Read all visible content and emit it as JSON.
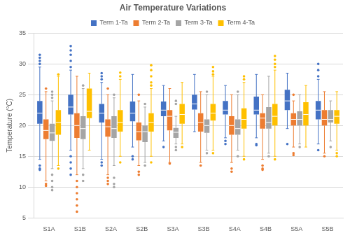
{
  "chart_data": {
    "type": "boxplot",
    "title": "Air Temperature Variations",
    "y_label": "Temperature (°C)",
    "categories": [
      "S1A",
      "S1B",
      "S2A",
      "S2B",
      "S3A",
      "S3B",
      "S4A",
      "S4B",
      "S5A",
      "S5B"
    ],
    "ylim": [
      5,
      35
    ],
    "yticks": [
      5,
      10,
      15,
      20,
      25,
      30,
      35
    ],
    "grid": true,
    "legend": "top",
    "series": [
      {
        "name": "Term 1-Ta",
        "color": "#4472c4",
        "values": [
          {
            "min": 14.5,
            "q1": 20.3,
            "median": 22,
            "q3": 24,
            "max": 29.5,
            "outliers": [
              30,
              30.5,
              31,
              31.5,
              13.5,
              13,
              12.8
            ]
          },
          {
            "min": 16,
            "q1": 21.8,
            "median": 23,
            "q3": 25,
            "max": 29,
            "outliers": [
              29.5,
              30.5,
              31.5,
              32.2,
              32.9,
              15,
              14,
              13,
              12
            ]
          },
          {
            "min": 14.5,
            "q1": 20.5,
            "median": 22,
            "q3": 23.5,
            "max": 27,
            "outliers": [
              27.5,
              28,
              28.5,
              14,
              13.5
            ]
          },
          {
            "min": 16.5,
            "q1": 20.7,
            "median": 22,
            "q3": 23.9,
            "max": 28.3,
            "outliers": [
              15,
              14.5
            ]
          },
          {
            "min": 17.5,
            "q1": 21.5,
            "median": 22.5,
            "q3": 23.9,
            "max": 26.5,
            "outliers": [
              16.5
            ]
          },
          {
            "min": 19,
            "q1": 22.6,
            "median": 23.5,
            "q3": 25,
            "max": 28.3,
            "outliers": []
          },
          {
            "min": 18,
            "q1": 21.8,
            "median": 22.5,
            "q3": 24,
            "max": 26.5,
            "outliers": [
              17.5,
              17
            ]
          },
          {
            "min": 18,
            "q1": 21.8,
            "median": 22.5,
            "q3": 24.7,
            "max": 28.3,
            "outliers": [
              17,
              16.8
            ]
          },
          {
            "min": 19.5,
            "q1": 22.5,
            "median": 24,
            "q3": 25.8,
            "max": 28.5,
            "outliers": [
              17
            ]
          },
          {
            "min": 17,
            "q1": 21,
            "median": 22.5,
            "q3": 24,
            "max": 27.5,
            "outliers": [
              28,
              29,
              30,
              16
            ]
          }
        ]
      },
      {
        "name": "Term 2-Ta",
        "color": "#ed7d31",
        "values": [
          {
            "min": 11,
            "q1": 17.8,
            "median": 19.2,
            "q3": 21,
            "max": 25.5,
            "outliers": [
              26,
              10.5,
              10.2
            ]
          },
          {
            "min": 12,
            "q1": 18,
            "median": 20,
            "q3": 22,
            "max": 28,
            "outliers": [
              11,
              10,
              9,
              8,
              7,
              6
            ]
          },
          {
            "min": 12,
            "q1": 18.2,
            "median": 19.8,
            "q3": 21,
            "max": 25,
            "outliers": [
              26,
              11.5,
              11,
              10.5
            ]
          },
          {
            "min": 13.5,
            "q1": 17.6,
            "median": 19,
            "q3": 20.5,
            "max": 24,
            "outliers": [
              25,
              12.5,
              12
            ]
          },
          {
            "min": 14,
            "q1": 19.2,
            "median": 21.5,
            "q3": 22.5,
            "max": 26,
            "outliers": [
              13.8
            ]
          },
          {
            "min": 14,
            "q1": 19,
            "median": 20.5,
            "q3": 22,
            "max": 25.5,
            "outliers": [
              13.5
            ]
          },
          {
            "min": 14,
            "q1": 18.5,
            "median": 20,
            "q3": 21.5,
            "max": 25,
            "outliers": [
              13,
              12.5
            ]
          },
          {
            "min": 14.5,
            "q1": 19.5,
            "median": 21.2,
            "q3": 22,
            "max": 25,
            "outliers": [
              13.5,
              13,
              12.8
            ]
          },
          {
            "min": 16.5,
            "q1": 20,
            "median": 21,
            "q3": 22,
            "max": 24,
            "outliers": [
              25,
              15.5,
              15.2
            ]
          },
          {
            "min": 15.5,
            "q1": 20,
            "median": 21,
            "q3": 22.5,
            "max": 25.5,
            "outliers": [
              15
            ]
          }
        ]
      },
      {
        "name": "Term 3-Ta",
        "color": "#a5a5a5",
        "values": [
          {
            "min": 13,
            "q1": 17.5,
            "median": 18.8,
            "q3": 20.3,
            "max": 24,
            "outliers": [
              24.5,
              25,
              25.5,
              12,
              11,
              10,
              9.5
            ]
          },
          {
            "min": 13,
            "q1": 17.8,
            "median": 19.5,
            "q3": 21.5,
            "max": 26,
            "outliers": [
              26.5,
              12,
              11
            ]
          },
          {
            "min": 13.5,
            "q1": 18,
            "median": 19.5,
            "q3": 21.5,
            "max": 24.5,
            "outliers": [
              25,
              11.5,
              10.5,
              10
            ]
          },
          {
            "min": 14,
            "q1": 17.3,
            "median": 19,
            "q3": 20,
            "max": 23,
            "outliers": [
              23.5,
              13.5
            ]
          },
          {
            "min": 17,
            "q1": 18,
            "median": 18.9,
            "q3": 19.6,
            "max": 21.5,
            "outliers": [
              23.5,
              24,
              16.5,
              16
            ]
          },
          {
            "min": 16,
            "q1": 18.8,
            "median": 20,
            "q3": 21,
            "max": 25,
            "outliers": [
              25.5,
              15.5
            ]
          },
          {
            "min": 16,
            "q1": 18.5,
            "median": 19.5,
            "q3": 21,
            "max": 25,
            "outliers": [
              25.5,
              15
            ]
          },
          {
            "min": 15.5,
            "q1": 19.5,
            "median": 20.5,
            "q3": 23,
            "max": 28,
            "outliers": [
              15
            ]
          },
          {
            "min": 17,
            "q1": 20,
            "median": 21,
            "q3": 22.3,
            "max": 25,
            "outliers": [
              16.5
            ]
          },
          {
            "min": 17.5,
            "q1": 20.5,
            "median": 21,
            "q3": 22.5,
            "max": 24,
            "outliers": [
              16.5
            ]
          }
        ]
      },
      {
        "name": "Term 4-Ta",
        "color": "#ffc000",
        "values": [
          {
            "min": 13.5,
            "q1": 18.5,
            "median": 20.5,
            "q3": 22.5,
            "max": 28,
            "outliers": [
              28.3,
              13
            ]
          },
          {
            "min": 16,
            "q1": 21.2,
            "median": 22.3,
            "q3": 26,
            "max": 28.5,
            "outliers": []
          },
          {
            "min": 15,
            "q1": 19,
            "median": 20.5,
            "q3": 22.5,
            "max": 27.5,
            "outliers": [
              28,
              28.6,
              14
            ]
          },
          {
            "min": 15,
            "q1": 19,
            "median": 20.5,
            "q3": 22,
            "max": 26,
            "outliers": [
              26.5,
              27,
              28,
              29,
              29.8,
              14
            ]
          },
          {
            "min": 17,
            "q1": 20.3,
            "median": 21.8,
            "q3": 23.5,
            "max": 27,
            "outliers": [
              16.5
            ]
          },
          {
            "min": 16,
            "q1": 20.8,
            "median": 22,
            "q3": 23.5,
            "max": 28,
            "outliers": [
              28.3,
              28.8,
              29.5,
              15.5
            ]
          },
          {
            "min": 15,
            "q1": 19.5,
            "median": 21,
            "q3": 22.8,
            "max": 27,
            "outliers": [
              27.5,
              28,
              14.5
            ]
          },
          {
            "min": 15,
            "q1": 20,
            "median": 21.5,
            "q3": 23.5,
            "max": 29,
            "outliers": [
              29.5,
              30,
              30.7,
              31.3,
              14.5
            ]
          },
          {
            "min": 16.5,
            "q1": 20,
            "median": 21.8,
            "q3": 23.8,
            "max": 26.5,
            "outliers": []
          },
          {
            "min": 16,
            "q1": 20.3,
            "median": 21.5,
            "q3": 22.5,
            "max": 25.5,
            "outliers": [
              15.5,
              15
            ]
          }
        ]
      }
    ]
  }
}
